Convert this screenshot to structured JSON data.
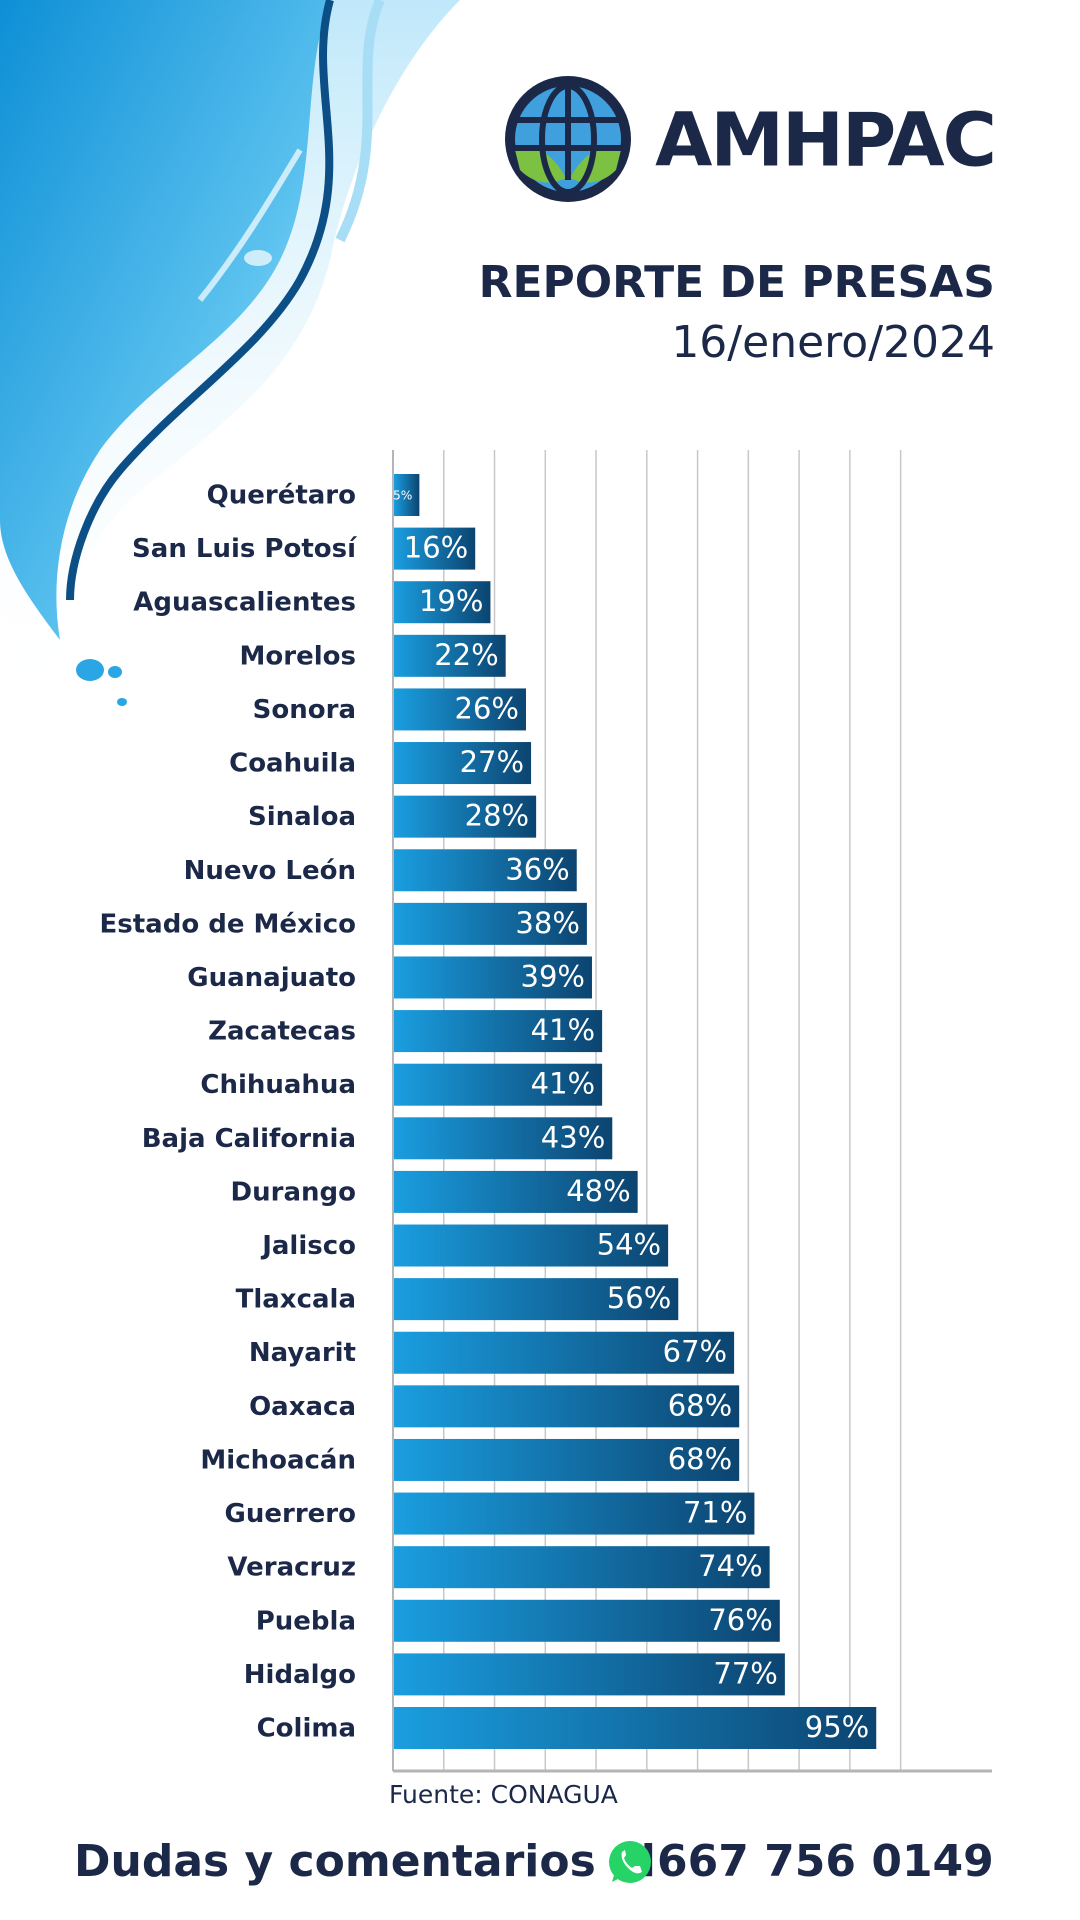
{
  "brand": "AMHPAC",
  "chart_data": {
    "type": "bar",
    "orientation": "horizontal",
    "title": "REPORTE DE PRESAS",
    "subtitle": "16/enero/2024",
    "categories": [
      "Querétaro",
      "San Luis Potosí",
      "Aguascalientes",
      "Morelos",
      "Sonora",
      "Coahuila",
      "Sinaloa",
      "Nuevo León",
      "Estado de México",
      "Guanajuato",
      "Zacatecas",
      "Chihuahua",
      "Baja California",
      "Durango",
      "Jalisco",
      "Tlaxcala",
      "Nayarit",
      "Oaxaca",
      "Michoacán",
      "Guerrero",
      "Veracruz",
      "Puebla",
      "Hidalgo",
      "Colima"
    ],
    "values": [
      5,
      16,
      19,
      22,
      26,
      27,
      28,
      36,
      38,
      39,
      41,
      41,
      43,
      48,
      54,
      56,
      67,
      68,
      68,
      71,
      74,
      76,
      77,
      95
    ],
    "value_labels": [
      "5%",
      "16%",
      "19%",
      "22%",
      "26%",
      "27%",
      "28%",
      "36%",
      "38%",
      "39%",
      "41%",
      "41%",
      "43%",
      "48%",
      "54%",
      "56%",
      "67%",
      "68%",
      "68%",
      "71%",
      "74%",
      "76%",
      "77%",
      "95%"
    ],
    "color": "#1a9ee0",
    "xlim": [
      0,
      118
    ],
    "xticks": [
      0,
      10,
      20,
      30,
      40,
      50,
      60,
      70,
      80,
      90,
      100
    ],
    "grid": true,
    "source": "Fuente: CONAGUA"
  },
  "footer": {
    "text": "Dudas y comentarios al",
    "phone": "667 756 0149"
  }
}
